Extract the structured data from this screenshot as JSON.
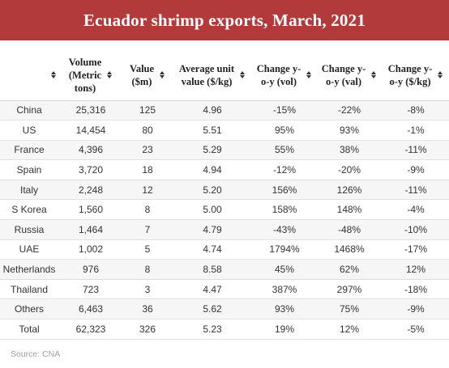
{
  "title": "Ecuador shrimp exports, March, 2021",
  "source": "Source: CNA",
  "columns": [
    {
      "lines": [
        ""
      ]
    },
    {
      "lines": [
        "Volume",
        "(Metric",
        "tons)"
      ]
    },
    {
      "lines": [
        "Value",
        "($m)"
      ]
    },
    {
      "lines": [
        "Average unit",
        "value ($/kg)"
      ]
    },
    {
      "lines": [
        "Change y-",
        "o-y (vol)"
      ]
    },
    {
      "lines": [
        "Change y-",
        "o-y (val)"
      ]
    },
    {
      "lines": [
        "Change y-",
        "o-y ($/kg)"
      ]
    }
  ],
  "rows": [
    [
      "China",
      "25,316",
      "125",
      "4.96",
      "-15%",
      "-22%",
      "-8%"
    ],
    [
      "US",
      "14,454",
      "80",
      "5.51",
      "95%",
      "93%",
      "-1%"
    ],
    [
      "France",
      "4,396",
      "23",
      "5.29",
      "55%",
      "38%",
      "-11%"
    ],
    [
      "Spain",
      "3,720",
      "18",
      "4.94",
      "-12%",
      "-20%",
      "-9%"
    ],
    [
      "Italy",
      "2,248",
      "12",
      "5.20",
      "156%",
      "126%",
      "-11%"
    ],
    [
      "S Korea",
      "1,560",
      "8",
      "5.00",
      "158%",
      "148%",
      "-4%"
    ],
    [
      "Russia",
      "1,464",
      "7",
      "4.79",
      "-43%",
      "-48%",
      "-10%"
    ],
    [
      "UAE",
      "1,002",
      "5",
      "4.74",
      "1794%",
      "1468%",
      "-17%"
    ],
    [
      "Netherlands",
      "976",
      "8",
      "8.58",
      "45%",
      "62%",
      "12%"
    ],
    [
      "Thailand",
      "723",
      "3",
      "4.47",
      "387%",
      "297%",
      "-18%"
    ],
    [
      "Others",
      "6,463",
      "36",
      "5.62",
      "93%",
      "75%",
      "-9%"
    ],
    [
      "Total",
      "62,323",
      "326",
      "5.23",
      "19%",
      "12%",
      "-5%"
    ]
  ],
  "colors": {
    "header_bg": "#b23a3a",
    "header_text": "#ffffff",
    "row_stripe": "#f6f6f6",
    "source_text": "#a0a0a0"
  },
  "chart_data": {
    "type": "table",
    "title": "Ecuador shrimp exports, March, 2021",
    "columns": [
      "",
      "Volume (Metric tons)",
      "Value ($m)",
      "Average unit value ($/kg)",
      "Change y-o-y (vol)",
      "Change y-o-y (val)",
      "Change y-o-y ($/kg)"
    ],
    "rows": [
      [
        "China",
        25316,
        125,
        4.96,
        "-15%",
        "-22%",
        "-8%"
      ],
      [
        "US",
        14454,
        80,
        5.51,
        "95%",
        "93%",
        "-1%"
      ],
      [
        "France",
        4396,
        23,
        5.29,
        "55%",
        "38%",
        "-11%"
      ],
      [
        "Spain",
        3720,
        18,
        4.94,
        "-12%",
        "-20%",
        "-9%"
      ],
      [
        "Italy",
        2248,
        12,
        5.2,
        "156%",
        "126%",
        "-11%"
      ],
      [
        "S Korea",
        1560,
        8,
        5.0,
        "158%",
        "148%",
        "-4%"
      ],
      [
        "Russia",
        1464,
        7,
        4.79,
        "-43%",
        "-48%",
        "-10%"
      ],
      [
        "UAE",
        1002,
        5,
        4.74,
        "1794%",
        "1468%",
        "-17%"
      ],
      [
        "Netherlands",
        976,
        8,
        8.58,
        "45%",
        "62%",
        "12%"
      ],
      [
        "Thailand",
        723,
        3,
        4.47,
        "387%",
        "297%",
        "-18%"
      ],
      [
        "Others",
        6463,
        36,
        5.62,
        "93%",
        "75%",
        "-9%"
      ],
      [
        "Total",
        62323,
        326,
        5.23,
        "19%",
        "12%",
        "-5%"
      ]
    ]
  }
}
